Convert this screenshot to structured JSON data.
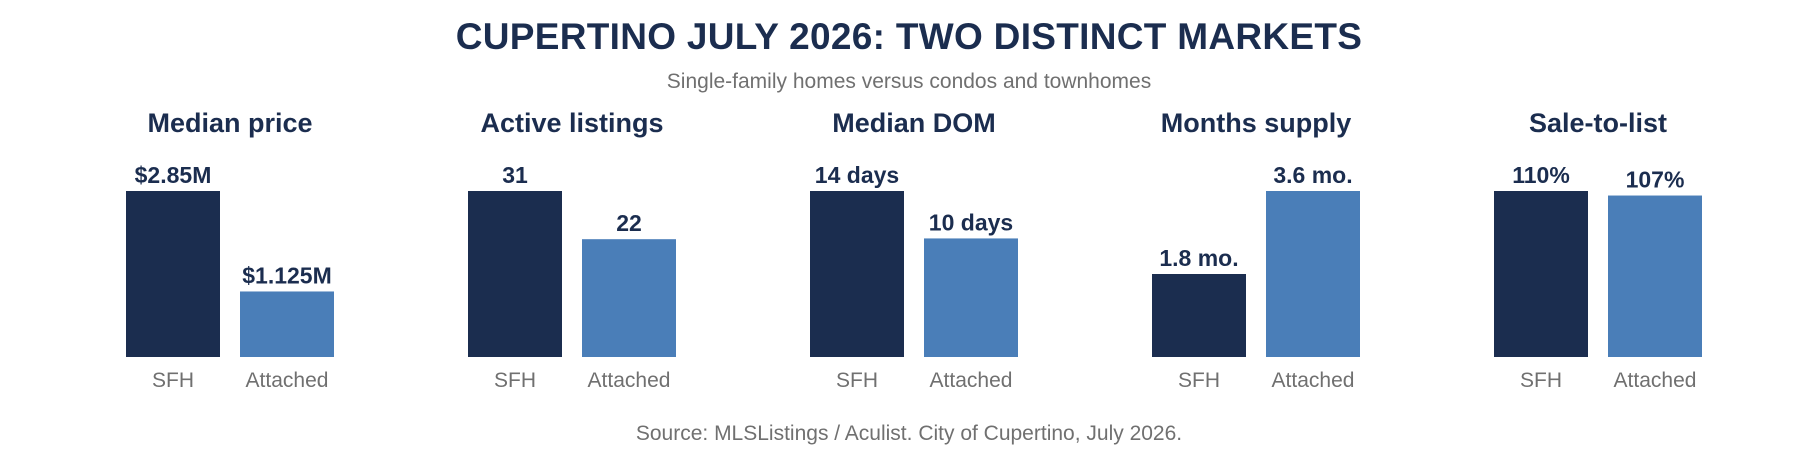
{
  "title": "CUPERTINO JULY 2026: TWO DISTINCT MARKETS",
  "subtitle": "Single-family homes versus condos and townhomes",
  "source": "Source: MLSListings / Aculist. City of Cupertino, July 2026.",
  "colors": {
    "SFH": "#1b2d4f",
    "Attached": "#4a7eb8"
  },
  "chart_data": [
    {
      "type": "bar",
      "title": "Median price",
      "categories": [
        "SFH",
        "Attached"
      ],
      "values": [
        2.85,
        1.125
      ],
      "value_labels": [
        "$2.85M",
        "$1.125M"
      ],
      "unit": "$M",
      "ylim": [
        0,
        2.85
      ]
    },
    {
      "type": "bar",
      "title": "Active listings",
      "categories": [
        "SFH",
        "Attached"
      ],
      "values": [
        31,
        22
      ],
      "value_labels": [
        "31",
        "22"
      ],
      "ylim": [
        0,
        31
      ]
    },
    {
      "type": "bar",
      "title": "Median DOM",
      "categories": [
        "SFH",
        "Attached"
      ],
      "values": [
        14,
        10
      ],
      "value_labels": [
        "14 days",
        "10 days"
      ],
      "unit": "days",
      "ylim": [
        0,
        14
      ]
    },
    {
      "type": "bar",
      "title": "Months supply",
      "categories": [
        "SFH",
        "Attached"
      ],
      "values": [
        1.8,
        3.6
      ],
      "value_labels": [
        "1.8 mo.",
        "3.6 mo."
      ],
      "unit": "months",
      "ylim": [
        0,
        3.6
      ]
    },
    {
      "type": "bar",
      "title": "Sale-to-list",
      "categories": [
        "SFH",
        "Attached"
      ],
      "values": [
        110,
        107
      ],
      "value_labels": [
        "110%",
        "107%"
      ],
      "unit": "%",
      "ylim": [
        0,
        110
      ]
    }
  ]
}
